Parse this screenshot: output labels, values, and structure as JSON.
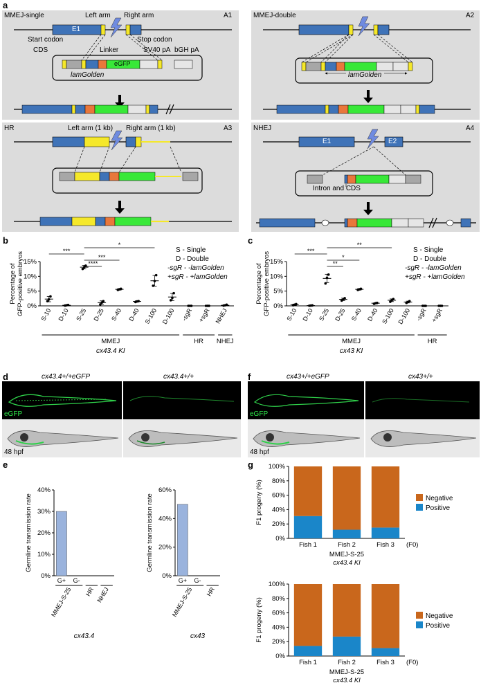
{
  "panels": {
    "a": "a",
    "b": "b",
    "c": "c",
    "d": "d",
    "e": "e",
    "f": "f",
    "g": "g"
  },
  "panel_a": {
    "A1": {
      "tag": "A1",
      "title": "MMEJ-single",
      "e1": "E1",
      "left_arm": "Left arm",
      "right_arm": "Right arm",
      "start_codon": "Start codon",
      "stop_codon": "Stop codon",
      "cds": "CDS",
      "linker": "Linker",
      "sv40": "SV40 pA",
      "bgh": "bGH pA",
      "egfp": "eGFP",
      "vector": "lamGolden"
    },
    "A2": {
      "tag": "A2",
      "title": "MMEJ-double",
      "vector": "lamGolden"
    },
    "A3": {
      "tag": "A3",
      "title": "HR",
      "left_arm": "Left arm (1 kb)",
      "right_arm": "Right arm (1 kb)"
    },
    "A4": {
      "tag": "A4",
      "title": "NHEJ",
      "e1": "E1",
      "e2": "E2",
      "intron": "Intron and CDS"
    }
  },
  "legend_bc": {
    "s": "S - Single",
    "d": "D - Double",
    "minus": "-sgR - -lamGolden",
    "plus": "+sgR - +lamGolden"
  },
  "chart_data": [
    {
      "id": "b",
      "type": "scatter",
      "ylabel": "Percentage of GFP-positive embryos",
      "ylim": [
        0,
        15
      ],
      "yticks": [
        "0%",
        "5%",
        "10%",
        "15%"
      ],
      "categories": [
        "S-10",
        "D-10",
        "S-25",
        "D-25",
        "S-40",
        "D-40",
        "S-100",
        "D-100",
        "-sgR",
        "+sgR",
        "NHEJ"
      ],
      "points": [
        [
          1.6,
          2.2,
          3.2
        ],
        [
          0.1,
          0.2,
          0.3
        ],
        [
          12.5,
          13.1,
          13.6
        ],
        [
          0.5,
          1.1,
          1.6
        ],
        [
          5.4,
          5.6,
          5.8
        ],
        [
          1.3,
          1.5,
          1.6
        ],
        [
          6.8,
          8.4,
          10.4
        ],
        [
          1.9,
          2.7,
          4.3
        ],
        [
          0,
          0,
          0
        ],
        [
          0,
          0,
          0
        ],
        [
          0.1,
          0.2,
          0.4
        ]
      ],
      "means": [
        2.3,
        0.2,
        13.1,
        1.1,
        5.6,
        1.5,
        8.5,
        3.0,
        0,
        0,
        0.2
      ],
      "errs": [
        0.9,
        0.2,
        0.6,
        0.6,
        0.25,
        0.2,
        1.8,
        1.2,
        0,
        0,
        0.15
      ],
      "groups": [
        {
          "label": "MMEJ",
          "from": 0,
          "to": 7
        },
        {
          "label": "HR",
          "from": 8,
          "to": 9
        },
        {
          "label": "NHEJ",
          "from": 10,
          "to": 10
        }
      ],
      "xlabel": "cx43.4 KI",
      "sig": [
        {
          "a": 0,
          "b": 2,
          "label": "***",
          "level": 3
        },
        {
          "a": 2,
          "b": 3,
          "label": "****",
          "level": 1
        },
        {
          "a": 2,
          "b": 4,
          "label": "***",
          "level": 2
        },
        {
          "a": 2,
          "b": 6,
          "label": "*",
          "level": 4
        }
      ]
    },
    {
      "id": "c",
      "type": "scatter",
      "ylabel": "Percentage of GFP-positive embryos",
      "ylim": [
        0,
        15
      ],
      "yticks": [
        "0%",
        "5%",
        "10%",
        "15%"
      ],
      "categories": [
        "S-10",
        "D-10",
        "S-25",
        "D-25",
        "S-40",
        "D-40",
        "S-100",
        "D-100",
        "-sgR",
        "+sgR"
      ],
      "points": [
        [
          0.2,
          0.4,
          0.6
        ],
        [
          0.05,
          0.1,
          0.15
        ],
        [
          7.6,
          9.5,
          10.6
        ],
        [
          1.8,
          2.2,
          2.6
        ],
        [
          5.4,
          5.6,
          5.8
        ],
        [
          0.7,
          0.9,
          1.0
        ],
        [
          1.4,
          1.9,
          2.3
        ],
        [
          1.0,
          1.3,
          1.6
        ],
        [
          0,
          0,
          0
        ],
        [
          0,
          0,
          0
        ]
      ],
      "means": [
        0.4,
        0.1,
        9.3,
        2.2,
        5.6,
        0.9,
        1.9,
        1.3,
        0,
        0
      ],
      "errs": [
        0.2,
        0.05,
        1.4,
        0.4,
        0.25,
        0.15,
        0.45,
        0.3,
        0,
        0
      ],
      "groups": [
        {
          "label": "MMEJ",
          "from": 0,
          "to": 7
        },
        {
          "label": "HR",
          "from": 8,
          "to": 9
        }
      ],
      "xlabel": "cx43 KI",
      "sig": [
        {
          "a": 0,
          "b": 2,
          "label": "***",
          "level": 3
        },
        {
          "a": 2,
          "b": 3,
          "label": "**",
          "level": 1
        },
        {
          "a": 2,
          "b": 4,
          "label": "*",
          "level": 2
        },
        {
          "a": 2,
          "b": 6,
          "label": "**",
          "level": 4
        }
      ]
    },
    {
      "id": "e1",
      "type": "bar",
      "ylabel": "Germline transmission rate",
      "ylim": [
        0,
        40
      ],
      "yticks": [
        "0%",
        "10%",
        "20%",
        "30%",
        "40%"
      ],
      "categories": [
        "G+",
        "G-",
        "HR",
        "NHEJ"
      ],
      "values": [
        30,
        0,
        0,
        0
      ],
      "groups": [
        {
          "label": "MMEJ-S-25",
          "from": 0,
          "to": 1
        },
        {
          "label": "HR",
          "from": 2,
          "to": 2
        },
        {
          "label": "NHEJ",
          "from": 3,
          "to": 3
        }
      ],
      "xlabel": "cx43.4"
    },
    {
      "id": "e2",
      "type": "bar",
      "ylabel": "Germline transmission rate",
      "ylim": [
        0,
        60
      ],
      "yticks": [
        "0%",
        "20%",
        "40%",
        "60%"
      ],
      "categories": [
        "G+",
        "G-",
        "HR"
      ],
      "values": [
        50,
        0,
        0
      ],
      "groups": [
        {
          "label": "MMEJ-S-25",
          "from": 0,
          "to": 1
        },
        {
          "label": "HR",
          "from": 2,
          "to": 2
        }
      ],
      "xlabel": "cx43"
    },
    {
      "id": "g1",
      "type": "bar",
      "ylabel": "F1 progeny (%)",
      "ylim": [
        0,
        100
      ],
      "yticks": [
        "0%",
        "20%",
        "40%",
        "60%",
        "80%",
        "100%"
      ],
      "categories": [
        "Fish 1",
        "Fish 2",
        "Fish 3"
      ],
      "suffix": "(F0)",
      "series": [
        {
          "name": "Positive",
          "values": [
            31,
            12,
            15
          ]
        },
        {
          "name": "Negative",
          "values": [
            69,
            88,
            85
          ]
        }
      ],
      "xlabel": "MMEJ-S-25",
      "xlabel2": "cx43.4 KI"
    },
    {
      "id": "g2",
      "type": "bar",
      "ylabel": "F1 progeny (%)",
      "ylim": [
        0,
        100
      ],
      "yticks": [
        "0%",
        "20%",
        "40%",
        "60%",
        "80%",
        "100%"
      ],
      "categories": [
        "Fish 1",
        "Fish 2",
        "Fish 3"
      ],
      "suffix": "(F0)",
      "series": [
        {
          "name": "Positive",
          "values": [
            14,
            27,
            11
          ]
        },
        {
          "name": "Negative",
          "values": [
            86,
            73,
            89
          ]
        }
      ],
      "xlabel": "MMEJ-S-25",
      "xlabel2": "cx43.4 KI"
    }
  ],
  "panel_d": {
    "left_title": "cx43.4+/+eGFP",
    "right_title": "cx43.4+/+",
    "egfp": "eGFP",
    "hpf": "48 hpf"
  },
  "panel_f": {
    "left_title": "cx43+/+eGFP",
    "right_title": "cx43+/+",
    "egfp": "eGFP",
    "hpf": "48 hpf"
  },
  "colors": {
    "blue": "#3f73b8",
    "yellow": "#f5e82a",
    "orange": "#e9773b",
    "green": "#38e838",
    "grey": "#a7a7a7",
    "light": "#e6e6e6",
    "bar_e": "#9ab3dd",
    "g_pos": "#1a86c9",
    "g_neg": "#c9671c"
  }
}
